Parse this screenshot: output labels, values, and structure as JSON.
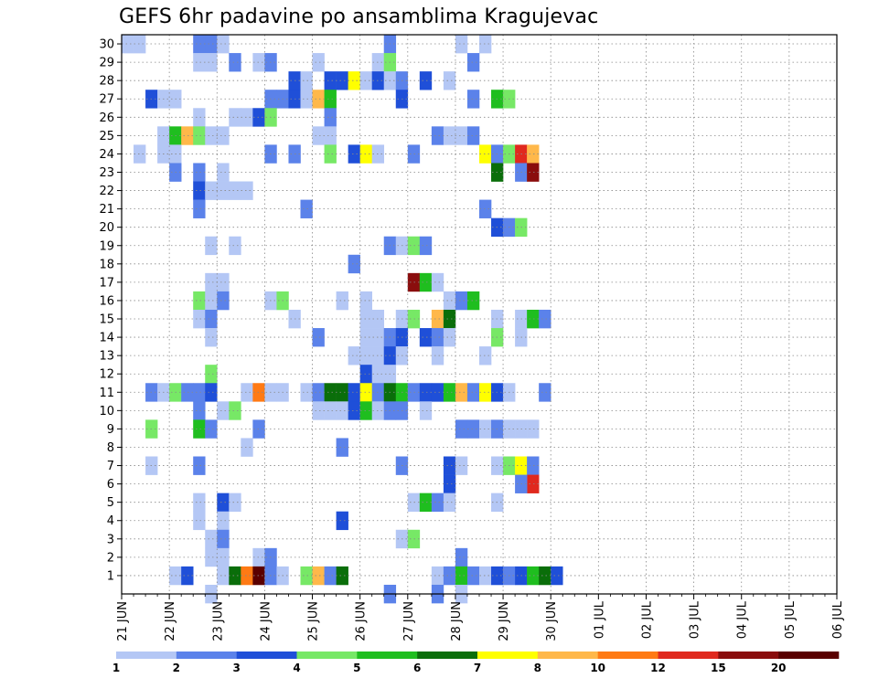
{
  "chart_data": {
    "type": "heatmap",
    "title": "GEFS 6hr padavine po ansamblima Kragujevac",
    "xlabel": "",
    "ylabel": "",
    "x_ticks": [
      "21 JUN",
      "22 JUN",
      "23 JUN",
      "24 JUN",
      "25 JUN",
      "26 JUN",
      "27 JUN",
      "28 JUN",
      "29 JUN",
      "30 JUN",
      "01 JUL",
      "02 JUL",
      "03 JUL",
      "04 JUL",
      "05 JUL",
      "06 JUL"
    ],
    "y_ticks": [
      1,
      2,
      3,
      4,
      5,
      6,
      7,
      8,
      9,
      10,
      11,
      12,
      13,
      14,
      15,
      16,
      17,
      18,
      19,
      20,
      21,
      22,
      23,
      24,
      25,
      26,
      27,
      28,
      29,
      30
    ],
    "x_unit": "6-hour step from 21 JUN 00",
    "color_levels": [
      1,
      2,
      3,
      4,
      5,
      6,
      7,
      8,
      10,
      12,
      15,
      20
    ],
    "colors": [
      "#b4c7f5",
      "#5b82ea",
      "#1f4fd8",
      "#77e866",
      "#1fbe1f",
      "#0a6e0a",
      "#ffff00",
      "#ffb84a",
      "#ff7a14",
      "#e0291e",
      "#8a0d0d",
      "#5a0000"
    ],
    "grid": true,
    "cells": [
      [
        0,
        30,
        1
      ],
      [
        1,
        30,
        1
      ],
      [
        6,
        30,
        2
      ],
      [
        7,
        30,
        2
      ],
      [
        8,
        30,
        1
      ],
      [
        22,
        30,
        2
      ],
      [
        28,
        30,
        1
      ],
      [
        30,
        30,
        1
      ],
      [
        6,
        29,
        1
      ],
      [
        7,
        29,
        1
      ],
      [
        9,
        29,
        2
      ],
      [
        11,
        29,
        1
      ],
      [
        12,
        29,
        2
      ],
      [
        16,
        29,
        1
      ],
      [
        21,
        29,
        1
      ],
      [
        22,
        29,
        4
      ],
      [
        29,
        29,
        2
      ],
      [
        14,
        28,
        3
      ],
      [
        15,
        28,
        1
      ],
      [
        17,
        28,
        3
      ],
      [
        18,
        28,
        3
      ],
      [
        19,
        28,
        7
      ],
      [
        20,
        28,
        1
      ],
      [
        21,
        28,
        3
      ],
      [
        22,
        28,
        1
      ],
      [
        23,
        28,
        2
      ],
      [
        25,
        28,
        3
      ],
      [
        27,
        28,
        1
      ],
      [
        2,
        27,
        3
      ],
      [
        3,
        27,
        1
      ],
      [
        4,
        27,
        1
      ],
      [
        12,
        27,
        2
      ],
      [
        13,
        27,
        2
      ],
      [
        14,
        27,
        3
      ],
      [
        15,
        27,
        1
      ],
      [
        16,
        27,
        8
      ],
      [
        17,
        27,
        5
      ],
      [
        23,
        27,
        3
      ],
      [
        29,
        27,
        2
      ],
      [
        31,
        27,
        5
      ],
      [
        32,
        27,
        4
      ],
      [
        6,
        26,
        1
      ],
      [
        9,
        26,
        1
      ],
      [
        10,
        26,
        1
      ],
      [
        11,
        26,
        3
      ],
      [
        12,
        26,
        4
      ],
      [
        17,
        26,
        2
      ],
      [
        3,
        25,
        1
      ],
      [
        4,
        25,
        5
      ],
      [
        5,
        25,
        8
      ],
      [
        6,
        25,
        4
      ],
      [
        7,
        25,
        1
      ],
      [
        8,
        25,
        1
      ],
      [
        16,
        25,
        1
      ],
      [
        17,
        25,
        1
      ],
      [
        26,
        25,
        2
      ],
      [
        27,
        25,
        1
      ],
      [
        28,
        25,
        1
      ],
      [
        29,
        25,
        2
      ],
      [
        1,
        24,
        1
      ],
      [
        3,
        24,
        1
      ],
      [
        4,
        24,
        1
      ],
      [
        12,
        24,
        2
      ],
      [
        14,
        24,
        2
      ],
      [
        17,
        24,
        4
      ],
      [
        19,
        24,
        3
      ],
      [
        20,
        24,
        7
      ],
      [
        21,
        24,
        1
      ],
      [
        24,
        24,
        2
      ],
      [
        30,
        24,
        7
      ],
      [
        31,
        24,
        2
      ],
      [
        32,
        24,
        4
      ],
      [
        33,
        24,
        10
      ],
      [
        34,
        24,
        8
      ],
      [
        4,
        23,
        2
      ],
      [
        6,
        23,
        2
      ],
      [
        8,
        23,
        1
      ],
      [
        31,
        23,
        6
      ],
      [
        33,
        23,
        2
      ],
      [
        34,
        23,
        11
      ],
      [
        6,
        22,
        3
      ],
      [
        7,
        22,
        1
      ],
      [
        8,
        22,
        1
      ],
      [
        9,
        22,
        1
      ],
      [
        10,
        22,
        1
      ],
      [
        6,
        21,
        2
      ],
      [
        15,
        21,
        2
      ],
      [
        30,
        21,
        2
      ],
      [
        31,
        20,
        3
      ],
      [
        32,
        20,
        2
      ],
      [
        33,
        20,
        4
      ],
      [
        7,
        19,
        1
      ],
      [
        9,
        19,
        1
      ],
      [
        22,
        19,
        2
      ],
      [
        23,
        19,
        1
      ],
      [
        24,
        19,
        4
      ],
      [
        25,
        19,
        2
      ],
      [
        19,
        18,
        2
      ],
      [
        7,
        17,
        1
      ],
      [
        8,
        17,
        1
      ],
      [
        24,
        17,
        11
      ],
      [
        25,
        17,
        5
      ],
      [
        26,
        17,
        1
      ],
      [
        6,
        16,
        4
      ],
      [
        7,
        16,
        1
      ],
      [
        8,
        16,
        2
      ],
      [
        12,
        16,
        1
      ],
      [
        13,
        16,
        4
      ],
      [
        18,
        16,
        1
      ],
      [
        20,
        16,
        1
      ],
      [
        27,
        16,
        1
      ],
      [
        28,
        16,
        2
      ],
      [
        29,
        16,
        5
      ],
      [
        6,
        15,
        1
      ],
      [
        7,
        15,
        2
      ],
      [
        14,
        15,
        1
      ],
      [
        20,
        15,
        1
      ],
      [
        21,
        15,
        1
      ],
      [
        23,
        15,
        1
      ],
      [
        24,
        15,
        4
      ],
      [
        26,
        15,
        8
      ],
      [
        27,
        15,
        6
      ],
      [
        31,
        15,
        1
      ],
      [
        33,
        15,
        1
      ],
      [
        34,
        15,
        5
      ],
      [
        35,
        15,
        2
      ],
      [
        7,
        14,
        1
      ],
      [
        16,
        14,
        2
      ],
      [
        20,
        14,
        1
      ],
      [
        21,
        14,
        1
      ],
      [
        22,
        14,
        2
      ],
      [
        23,
        14,
        3
      ],
      [
        25,
        14,
        3
      ],
      [
        26,
        14,
        2
      ],
      [
        27,
        14,
        1
      ],
      [
        31,
        14,
        4
      ],
      [
        33,
        14,
        1
      ],
      [
        19,
        13,
        1
      ],
      [
        20,
        13,
        1
      ],
      [
        21,
        13,
        1
      ],
      [
        22,
        13,
        3
      ],
      [
        23,
        13,
        1
      ],
      [
        26,
        13,
        1
      ],
      [
        30,
        13,
        1
      ],
      [
        7,
        12,
        4
      ],
      [
        20,
        12,
        3
      ],
      [
        21,
        12,
        1
      ],
      [
        22,
        12,
        1
      ],
      [
        2,
        11,
        2
      ],
      [
        3,
        11,
        1
      ],
      [
        4,
        11,
        4
      ],
      [
        5,
        11,
        2
      ],
      [
        6,
        11,
        2
      ],
      [
        7,
        11,
        3
      ],
      [
        10,
        11,
        1
      ],
      [
        11,
        11,
        9
      ],
      [
        12,
        11,
        1
      ],
      [
        13,
        11,
        1
      ],
      [
        15,
        11,
        1
      ],
      [
        16,
        11,
        2
      ],
      [
        17,
        11,
        6
      ],
      [
        18,
        11,
        6
      ],
      [
        19,
        11,
        3
      ],
      [
        20,
        11,
        7
      ],
      [
        21,
        11,
        2
      ],
      [
        22,
        11,
        6
      ],
      [
        23,
        11,
        5
      ],
      [
        24,
        11,
        2
      ],
      [
        25,
        11,
        3
      ],
      [
        26,
        11,
        3
      ],
      [
        27,
        11,
        5
      ],
      [
        28,
        11,
        8
      ],
      [
        29,
        11,
        2
      ],
      [
        30,
        11,
        7
      ],
      [
        31,
        11,
        3
      ],
      [
        32,
        11,
        1
      ],
      [
        35,
        11,
        2
      ],
      [
        6,
        10,
        2
      ],
      [
        8,
        10,
        1
      ],
      [
        9,
        10,
        4
      ],
      [
        16,
        10,
        1
      ],
      [
        17,
        10,
        1
      ],
      [
        18,
        10,
        1
      ],
      [
        19,
        10,
        3
      ],
      [
        20,
        10,
        5
      ],
      [
        21,
        10,
        1
      ],
      [
        22,
        10,
        2
      ],
      [
        23,
        10,
        2
      ],
      [
        25,
        10,
        1
      ],
      [
        2,
        9,
        4
      ],
      [
        6,
        9,
        5
      ],
      [
        7,
        9,
        2
      ],
      [
        11,
        9,
        2
      ],
      [
        28,
        9,
        2
      ],
      [
        29,
        9,
        2
      ],
      [
        30,
        9,
        1
      ],
      [
        31,
        9,
        2
      ],
      [
        32,
        9,
        1
      ],
      [
        33,
        9,
        1
      ],
      [
        34,
        9,
        1
      ],
      [
        10,
        8,
        1
      ],
      [
        18,
        8,
        2
      ],
      [
        2,
        7,
        1
      ],
      [
        6,
        7,
        2
      ],
      [
        23,
        7,
        2
      ],
      [
        27,
        7,
        3
      ],
      [
        28,
        7,
        1
      ],
      [
        31,
        7,
        1
      ],
      [
        32,
        7,
        4
      ],
      [
        33,
        7,
        7
      ],
      [
        34,
        7,
        2
      ],
      [
        27,
        6,
        3
      ],
      [
        34,
        6,
        10
      ],
      [
        33,
        6,
        2
      ],
      [
        6,
        5,
        1
      ],
      [
        8,
        5,
        3
      ],
      [
        9,
        5,
        1
      ],
      [
        24,
        5,
        1
      ],
      [
        25,
        5,
        5
      ],
      [
        26,
        5,
        2
      ],
      [
        27,
        5,
        1
      ],
      [
        31,
        5,
        1
      ],
      [
        6,
        4,
        1
      ],
      [
        8,
        4,
        1
      ],
      [
        18,
        4,
        3
      ],
      [
        7,
        3,
        1
      ],
      [
        8,
        3,
        2
      ],
      [
        23,
        3,
        1
      ],
      [
        24,
        3,
        4
      ],
      [
        7,
        2,
        1
      ],
      [
        8,
        2,
        1
      ],
      [
        11,
        2,
        1
      ],
      [
        12,
        2,
        2
      ],
      [
        28,
        2,
        2
      ],
      [
        4,
        1,
        1
      ],
      [
        5,
        1,
        3
      ],
      [
        8,
        1,
        1
      ],
      [
        9,
        1,
        6
      ],
      [
        10,
        1,
        9
      ],
      [
        11,
        1,
        12
      ],
      [
        12,
        1,
        2
      ],
      [
        13,
        1,
        1
      ],
      [
        15,
        1,
        4
      ],
      [
        16,
        1,
        8
      ],
      [
        17,
        1,
        2
      ],
      [
        18,
        1,
        6
      ],
      [
        26,
        1,
        1
      ],
      [
        27,
        1,
        2
      ],
      [
        28,
        1,
        5
      ],
      [
        29,
        1,
        2
      ],
      [
        30,
        1,
        1
      ],
      [
        31,
        1,
        3
      ],
      [
        32,
        1,
        2
      ],
      [
        33,
        1,
        3
      ],
      [
        34,
        1,
        5
      ],
      [
        35,
        1,
        6
      ],
      [
        36,
        1,
        3
      ],
      [
        7,
        0,
        1
      ],
      [
        22,
        0,
        2
      ],
      [
        26,
        0,
        2
      ],
      [
        28,
        0,
        1
      ]
    ]
  }
}
